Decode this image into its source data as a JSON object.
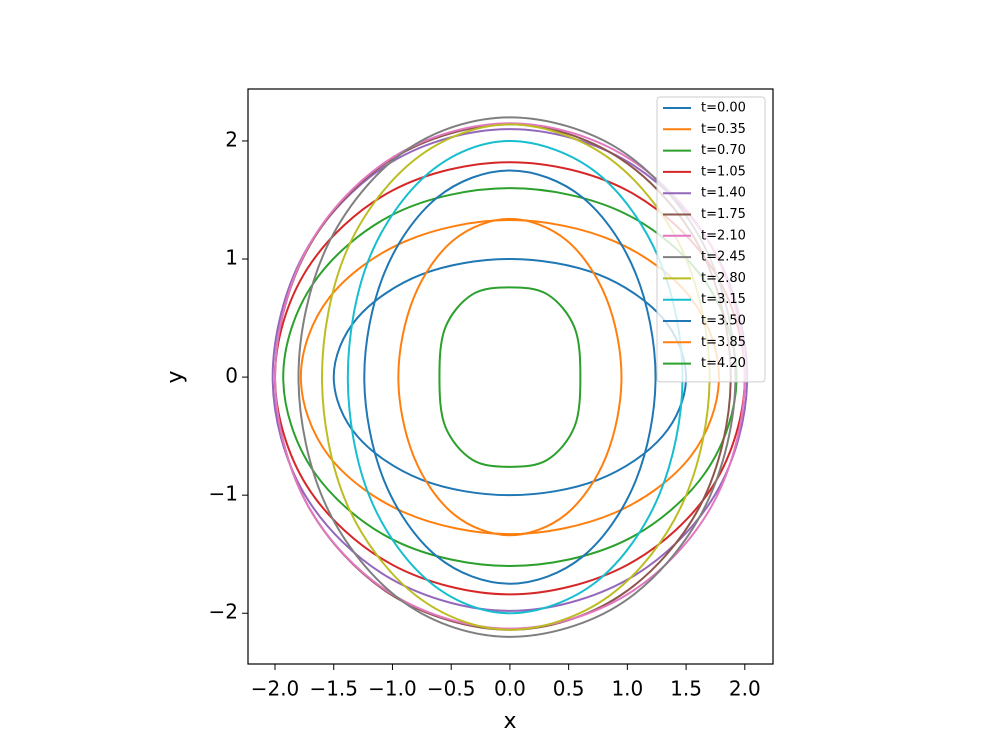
{
  "chart_data": {
    "type": "line",
    "xlabel": "x",
    "ylabel": "y",
    "xlim": [
      -2.23,
      2.24
    ],
    "ylim": [
      -2.43,
      2.44
    ],
    "xticks": [
      {
        "value": -2.0,
        "label": "−2.0"
      },
      {
        "value": -1.5,
        "label": "−1.5"
      },
      {
        "value": -1.0,
        "label": "−1.0"
      },
      {
        "value": -0.5,
        "label": "−0.5"
      },
      {
        "value": 0.0,
        "label": "0.0"
      },
      {
        "value": 0.5,
        "label": "0.5"
      },
      {
        "value": 1.0,
        "label": "1.0"
      },
      {
        "value": 1.5,
        "label": "1.5"
      },
      {
        "value": 2.0,
        "label": "2.0"
      }
    ],
    "yticks": [
      {
        "value": -2,
        "label": "−2"
      },
      {
        "value": -1,
        "label": "−1"
      },
      0,
      1,
      2
    ],
    "legend": "upper right",
    "series": [
      {
        "name": "t=0.00",
        "color": "#1f77b4",
        "x": [
          1.5,
          1.3,
          0.75,
          0,
          -0.75,
          -1.3,
          -1.5,
          -1.3,
          -0.75,
          0,
          0.75,
          1.3,
          1.5
        ],
        "y": [
          0,
          0.5,
          0.87,
          1,
          0.87,
          0.5,
          0,
          -0.5,
          -0.87,
          -1,
          -0.87,
          -0.5,
          0
        ]
      },
      {
        "name": "t=0.35",
        "color": "#ff7f0e",
        "x": [
          1.78,
          1.54,
          0.89,
          0,
          -0.89,
          -1.54,
          -1.78,
          -1.54,
          -0.89,
          0,
          0.89,
          1.54,
          1.78
        ],
        "y": [
          0,
          0.67,
          1.15,
          1.33,
          1.15,
          0.67,
          0,
          -0.67,
          -1.15,
          -1.33,
          -1.15,
          -0.67,
          0
        ]
      },
      {
        "name": "t=0.70",
        "color": "#2ca02c",
        "x": [
          1.93,
          1.67,
          0.97,
          0,
          -0.97,
          -1.67,
          -1.93,
          -1.67,
          -0.97,
          0,
          0.97,
          1.67,
          1.93
        ],
        "y": [
          0,
          0.8,
          1.39,
          1.6,
          1.39,
          0.8,
          0,
          -0.8,
          -1.39,
          -1.6,
          -1.39,
          -0.8,
          0
        ]
      },
      {
        "name": "t=1.05",
        "color": "#d62728",
        "x": [
          2,
          1.73,
          1,
          0,
          -1,
          -1.73,
          -2,
          -1.73,
          -1,
          0,
          1,
          1.73,
          2
        ],
        "y": [
          0,
          0.91,
          1.58,
          1.82,
          1.58,
          0.91,
          0,
          -0.92,
          -1.59,
          -1.84,
          -1.59,
          -0.92,
          0
        ]
      },
      {
        "name": "t=1.40",
        "color": "#9467bd",
        "x": [
          2.02,
          1.75,
          1.01,
          0,
          -1.01,
          -1.75,
          -2.02,
          -1.75,
          -1.01,
          0,
          1.01,
          1.75,
          2.02
        ],
        "y": [
          0,
          1.05,
          1.82,
          2.1,
          1.82,
          1.05,
          0,
          -0.99,
          -1.71,
          -1.98,
          -1.71,
          -0.99,
          0
        ]
      },
      {
        "name": "t=1.75",
        "color": "#8c564b",
        "x": [
          1.88,
          1.63,
          0.94,
          0,
          -1,
          -1.73,
          -2,
          -1.73,
          -1,
          0,
          0.94,
          1.63,
          1.88
        ],
        "y": [
          0,
          1.07,
          1.85,
          2.14,
          1.85,
          1.07,
          0,
          -1.07,
          -1.85,
          -2.14,
          -1.85,
          -1.07,
          0
        ]
      },
      {
        "name": "t=2.10",
        "color": "#e377c2",
        "x": [
          2,
          1.73,
          1,
          0,
          -1,
          -1.73,
          -2,
          -1.73,
          -1,
          0,
          1,
          1.73,
          2
        ],
        "y": [
          0,
          1.08,
          1.86,
          2.15,
          1.86,
          1.08,
          0,
          -1.07,
          -1.84,
          -2.13,
          -1.84,
          -1.07,
          0
        ]
      },
      {
        "name": "t=2.45",
        "color": "#7f7f7f",
        "x": [
          1.92,
          1.66,
          0.96,
          0,
          -0.9,
          -1.56,
          -1.8,
          -1.56,
          -0.9,
          0,
          0.96,
          1.66,
          1.92
        ],
        "y": [
          0,
          1.1,
          1.91,
          2.2,
          1.91,
          1.1,
          0,
          -1.1,
          -1.91,
          -2.2,
          -1.91,
          -1.1,
          0
        ]
      },
      {
        "name": "t=2.80",
        "color": "#bcbd22",
        "x": [
          1.7,
          1.47,
          0.85,
          0,
          -0.8,
          -1.39,
          -1.6,
          -1.39,
          -0.8,
          0,
          0.85,
          1.47,
          1.7
        ],
        "y": [
          0,
          1.07,
          1.85,
          2.14,
          1.85,
          1.07,
          0,
          -1.07,
          -1.85,
          -2.14,
          -1.85,
          -1.07,
          0
        ]
      },
      {
        "name": "t=3.15",
        "color": "#17becf",
        "x": [
          1.47,
          1.27,
          0.74,
          0,
          -0.69,
          -1.2,
          -1.38,
          -1.2,
          -0.69,
          0,
          0.74,
          1.27,
          1.47
        ],
        "y": [
          0,
          1,
          1.73,
          2,
          1.73,
          1,
          0,
          -1,
          -1.73,
          -2,
          -1.73,
          -1,
          0
        ]
      },
      {
        "name": "t=3.50",
        "color": "#1f77b4",
        "x": [
          1.24,
          1.07,
          0.62,
          0,
          -0.62,
          -1.07,
          -1.24,
          -1.07,
          -0.62,
          0,
          0.62,
          1.07,
          1.24
        ],
        "y": [
          0,
          0.88,
          1.52,
          1.75,
          1.52,
          0.88,
          0,
          -0.88,
          -1.52,
          -1.75,
          -1.52,
          -0.88,
          0
        ]
      },
      {
        "name": "t=3.85",
        "color": "#ff7f0e",
        "x": [
          0.95,
          0.82,
          0.48,
          0,
          -0.48,
          -0.82,
          -0.95,
          -0.82,
          -0.48,
          0,
          0.48,
          0.82,
          0.95
        ],
        "y": [
          0,
          0.67,
          1.16,
          1.34,
          1.16,
          0.67,
          0,
          -0.67,
          -1.16,
          -1.34,
          -1.16,
          -0.67,
          0
        ]
      },
      {
        "name": "t=4.20",
        "color": "#2ca02c",
        "x": [
          0.6,
          0.55,
          0.32,
          0,
          -0.32,
          -0.55,
          -0.6,
          -0.55,
          -0.32,
          0,
          0.32,
          0.55,
          0.6
        ],
        "y": [
          0,
          0.42,
          0.7,
          0.76,
          0.7,
          0.42,
          0,
          -0.42,
          -0.7,
          -0.76,
          -0.7,
          -0.42,
          0
        ]
      }
    ]
  }
}
